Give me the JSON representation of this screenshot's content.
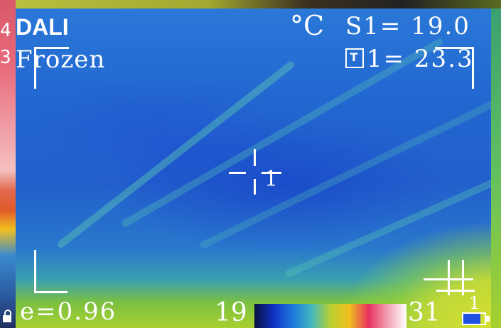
{
  "left_panel": {
    "partial_digits": [
      "4",
      "3"
    ]
  },
  "overlay": {
    "brand": "DALI",
    "mode": "Frozen",
    "unit": "°C",
    "spot_reading": "S1= 19.0",
    "hotspot_reading": "1= 23.3",
    "hotspot_icon_glyph": "T",
    "emissivity": "e=0.96",
    "crosshair_label": "1",
    "hotspot_marker_label": "1"
  },
  "scale": {
    "min": "19",
    "max": "31",
    "palette": [
      "#0a1040",
      "#1030c0",
      "#1e78e0",
      "#40b8c0",
      "#b8d030",
      "#f0c020",
      "#e83060",
      "#f0a0b0",
      "#ffffff"
    ]
  },
  "status": {
    "battery_level": 0.8,
    "battery_color": "#2050e0",
    "icons": [
      "lock-icon",
      "battery-icon",
      "thermometer-icon"
    ]
  }
}
